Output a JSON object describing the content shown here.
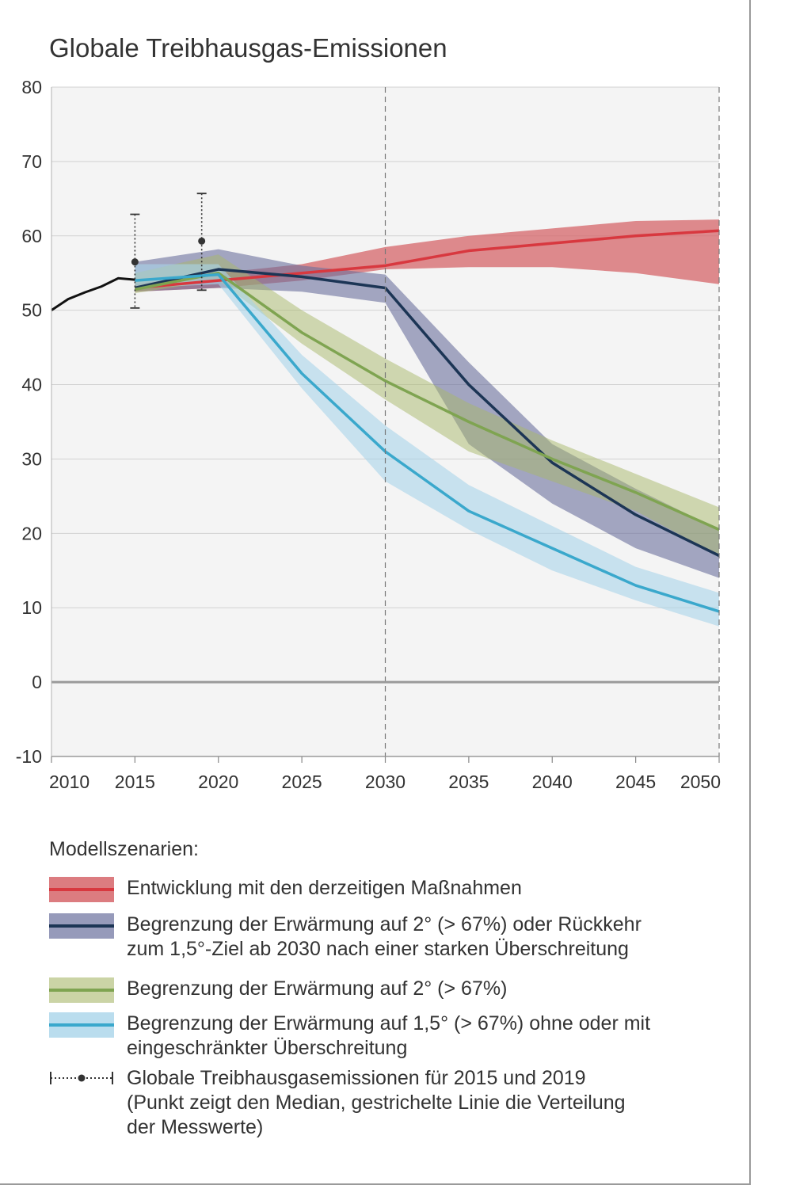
{
  "chart_data": {
    "type": "line",
    "title": "Globale Treibhausgas-Emissionen",
    "xlabel": "",
    "ylabel": "",
    "xlim": [
      2010,
      2050
    ],
    "ylim": [
      -10,
      80
    ],
    "x_ticks": [
      2010,
      2015,
      2020,
      2025,
      2030,
      2035,
      2040,
      2045,
      2050
    ],
    "y_ticks": [
      80,
      70,
      60,
      50,
      40,
      30,
      20,
      10,
      0,
      -10
    ],
    "grid": true,
    "reference_lines": [
      2030,
      2050
    ],
    "historical": {
      "x": [
        2010,
        2011,
        2012,
        2013,
        2014,
        2015
      ],
      "y": [
        50,
        51.5,
        52.4,
        53.2,
        54.3,
        54.1
      ]
    },
    "measurements": [
      {
        "year": 2015,
        "median": 56.5,
        "low": 50.3,
        "high": 62.9
      },
      {
        "year": 2019,
        "median": 59.3,
        "low": 52.7,
        "high": 65.7
      }
    ],
    "series": [
      {
        "color": "#d8383f",
        "band_color": "#d6656a",
        "x": [
          2015,
          2020,
          2025,
          2030,
          2035,
          2040,
          2045,
          2050
        ],
        "median": [
          53.0,
          54.0,
          55.0,
          56.0,
          58.0,
          59.0,
          60.0,
          60.7
        ],
        "low": [
          52.5,
          53.0,
          54.0,
          55.5,
          55.8,
          55.8,
          55.0,
          53.5
        ],
        "high": [
          53.5,
          55.0,
          56.2,
          58.5,
          60.0,
          61.0,
          62.0,
          62.2
        ]
      },
      {
        "color": "#1c3555",
        "band_color": "#6a6f9c",
        "x": [
          2015,
          2020,
          2025,
          2030,
          2035,
          2040,
          2045,
          2050
        ],
        "median": [
          53.0,
          55.5,
          54.5,
          53.0,
          40.0,
          29.5,
          22.5,
          17.0
        ],
        "low": [
          52.5,
          53.0,
          52.5,
          51.0,
          32.0,
          24.0,
          18.0,
          14.0
        ],
        "high": [
          56.5,
          58.2,
          56.0,
          54.8,
          43.0,
          32.0,
          26.0,
          20.5
        ]
      },
      {
        "color": "#7fa451",
        "band_color": "#a8b86a",
        "x": [
          2015,
          2020,
          2025,
          2030,
          2035,
          2040,
          2045,
          2050
        ],
        "median": [
          52.8,
          55.0,
          47.0,
          40.5,
          35.0,
          30.0,
          25.5,
          20.5
        ],
        "low": [
          52.3,
          54.0,
          45.5,
          38.0,
          31.0,
          27.0,
          23.0,
          17.0
        ],
        "high": [
          55.0,
          57.5,
          50.0,
          43.5,
          37.5,
          32.5,
          28.0,
          23.5
        ]
      },
      {
        "color": "#3aa8cc",
        "band_color": "#a9d4ea",
        "x": [
          2015,
          2020,
          2025,
          2030,
          2035,
          2040,
          2045,
          2050
        ],
        "median": [
          54.0,
          54.8,
          41.5,
          31.0,
          23.0,
          18.0,
          13.0,
          9.5
        ],
        "low": [
          53.0,
          53.5,
          39.5,
          27.0,
          20.5,
          15.0,
          11.0,
          7.5
        ],
        "high": [
          56.2,
          56.2,
          44.0,
          34.5,
          26.5,
          21.0,
          15.5,
          12.0
        ]
      }
    ]
  },
  "legend": {
    "title": "Modellszenarien:",
    "items": [
      {
        "lines": [
          "Entwicklung mit den derzeitigen Maßnahmen"
        ]
      },
      {
        "lines": [
          "Begrenzung der Erwärmung auf 2° (> 67%) oder Rückkehr",
          "zum 1,5°-Ziel ab 2030 nach einer starken Überschreitung"
        ]
      },
      {
        "lines": [
          "Begrenzung der Erwärmung auf 2° (> 67%)"
        ]
      },
      {
        "lines": [
          "Begrenzung der Erwärmung auf 1,5° (> 67%) ohne oder mit",
          "eingeschränkter Überschreitung"
        ]
      },
      {
        "lines": [
          "Globale Treibhausgasemissionen für 2015 und 2019",
          "(Punkt zeigt den Median, gestrichelte Linie die Verteilung",
          "der Messwerte)"
        ]
      }
    ]
  }
}
